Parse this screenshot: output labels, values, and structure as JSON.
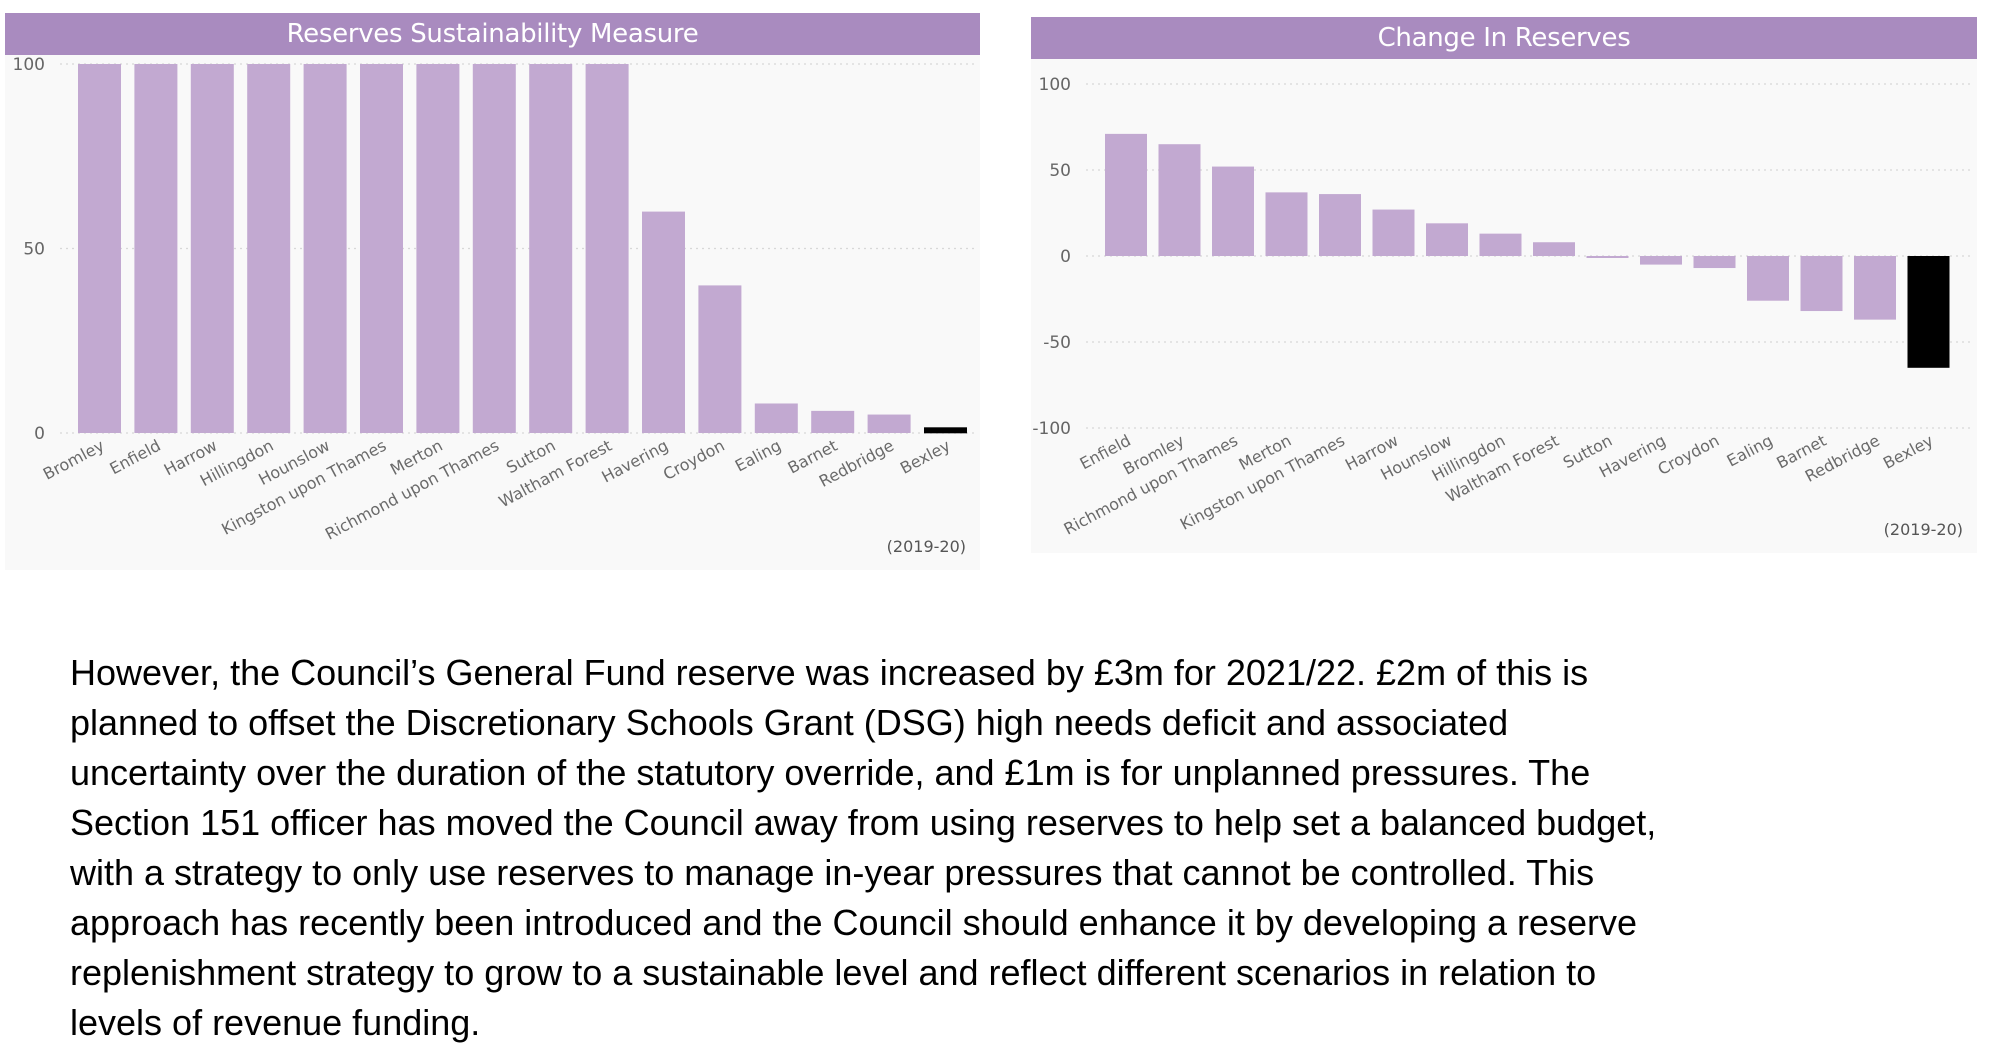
{
  "chart_data": [
    {
      "type": "bar",
      "title": "Reserves Sustainability Measure",
      "xlabel": "",
      "ylabel": "",
      "ylim": [
        0,
        100
      ],
      "yticks": [
        0,
        50,
        100
      ],
      "grid": true,
      "note": "(2019-20)",
      "categories": [
        "Bromley",
        "Enfield",
        "Harrow",
        "Hillingdon",
        "Hounslow",
        "Kingston upon Thames",
        "Merton",
        "Richmond upon Thames",
        "Sutton",
        "Waltham Forest",
        "Havering",
        "Croydon",
        "Ealing",
        "Barnet",
        "Redbridge",
        "Bexley"
      ],
      "values": [
        100,
        100,
        100,
        100,
        100,
        100,
        100,
        100,
        100,
        100,
        60,
        40,
        8,
        6,
        5,
        1
      ],
      "highlight": "Bexley",
      "colors": {
        "bar": "#c2a9d1",
        "highlight": "#000000",
        "title_bg": "#a98bbf"
      }
    },
    {
      "type": "bar",
      "title": "Change In Reserves",
      "xlabel": "",
      "ylabel": "",
      "ylim": [
        -100,
        100
      ],
      "yticks": [
        -100,
        -50,
        0,
        50,
        100
      ],
      "grid": true,
      "note": "(2019-20)",
      "categories": [
        "Enfield",
        "Bromley",
        "Richmond upon Thames",
        "Merton",
        "Kingston upon Thames",
        "Harrow",
        "Hounslow",
        "Hillingdon",
        "Waltham Forest",
        "Sutton",
        "Havering",
        "Croydon",
        "Ealing",
        "Barnet",
        "Redbridge",
        "Bexley"
      ],
      "values": [
        71,
        65,
        52,
        37,
        36,
        27,
        19,
        13,
        8,
        -1,
        -5,
        -7,
        -26,
        -32,
        -37,
        -65
      ],
      "highlight": "Bexley",
      "colors": {
        "bar": "#c2a9d1",
        "highlight": "#000000",
        "title_bg": "#a98bbf"
      }
    }
  ],
  "paragraph": {
    "lines": [
      "However, the Council’s General Fund reserve was increased by £3m for 2021/22. £2m of this is",
      "planned to offset the Discretionary Schools Grant (DSG) high needs deficit and associated",
      "uncertainty over the duration of the statutory override, and £1m is for unplanned pressures. The",
      "Section 151 officer has moved the Council away from using reserves to help set a balanced budget,",
      "with a strategy to only use reserves to manage in-year pressures that cannot be controlled. This",
      "approach has recently been introduced and the Council should enhance it by developing a reserve",
      "replenishment strategy to grow to a sustainable level and reflect different scenarios in relation to",
      "levels of revenue funding."
    ]
  }
}
